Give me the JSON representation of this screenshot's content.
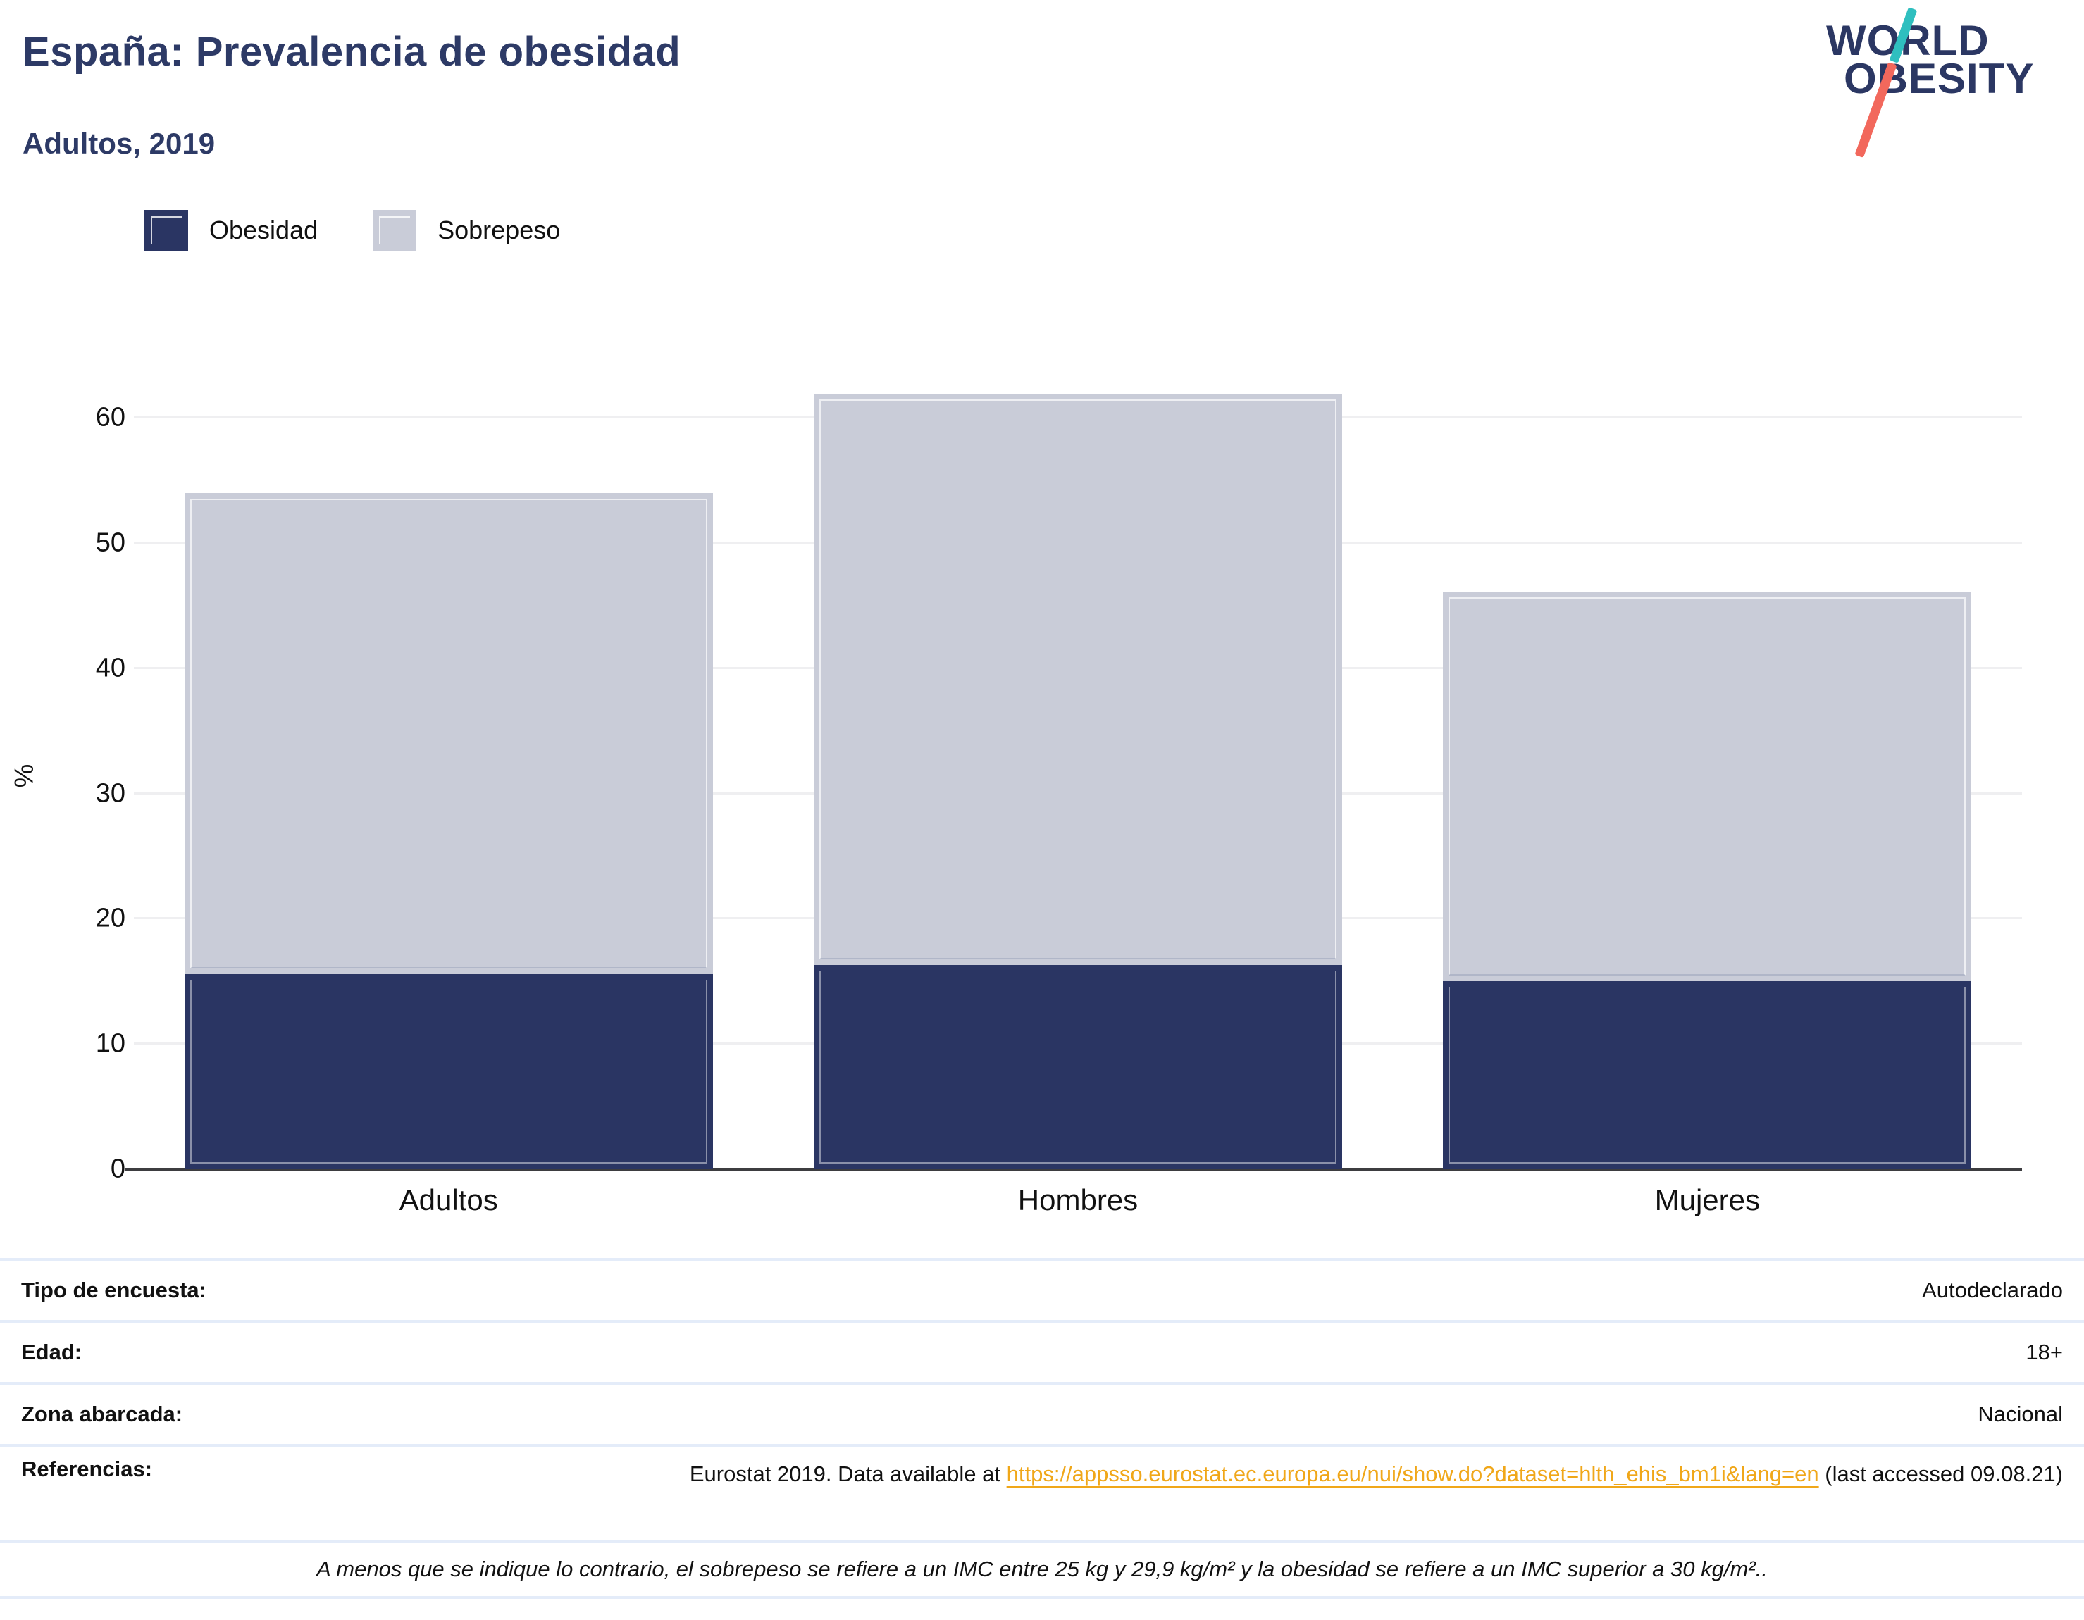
{
  "header": {
    "title": "España: Prevalencia de obesidad",
    "subtitle": "Adultos, 2019"
  },
  "logo": {
    "line1": "WORLD",
    "line2": "OBESITY",
    "navy": "#2b3763",
    "teal": "#2fbfbf",
    "coral": "#f2685c"
  },
  "legend": [
    {
      "label": "Obesidad",
      "color": "#2a3563"
    },
    {
      "label": "Sobrepeso",
      "color": "#c9ccd8"
    }
  ],
  "chart_data": {
    "type": "bar",
    "stacked": true,
    "categories": [
      "Adultos",
      "Hombres",
      "Mujeres"
    ],
    "series": [
      {
        "name": "Obesidad",
        "color": "#2a3563",
        "values": [
          15.6,
          16.3,
          15.0
        ]
      },
      {
        "name": "Sobrepeso",
        "color": "#c9ccd8",
        "values": [
          38.4,
          45.6,
          31.1
        ]
      }
    ],
    "totals": [
      54.0,
      61.9,
      46.1
    ],
    "title": "España: Prevalencia de obesidad — Adultos, 2019",
    "xlabel": "",
    "ylabel": "%",
    "yticks": [
      0,
      10,
      20,
      30,
      40,
      50,
      60
    ],
    "ylim": [
      0,
      62.7
    ],
    "grid": true,
    "legend_position": "top-left"
  },
  "details": {
    "rows": [
      {
        "label": "Tipo de encuesta:",
        "value": "Autodeclarado"
      },
      {
        "label": "Edad:",
        "value": "18+"
      },
      {
        "label": "Zona abarcada:",
        "value": "Nacional"
      }
    ],
    "references": {
      "label": "Referencias:",
      "before_link": "Eurostat 2019. Data available at ",
      "link": "https://appsso.eurostat.ec.europa.eu/nui/show.do?dataset=hlth_ehis_bm1i&lang=en",
      "after_link": " (last accessed 09.08.21)"
    },
    "note": "A menos que se indique lo contrario, el sobrepeso se refiere a un IMC entre 25 kg y 29,9 kg/m² y la obesidad se refiere a un IMC superior a 30 kg/m².."
  }
}
